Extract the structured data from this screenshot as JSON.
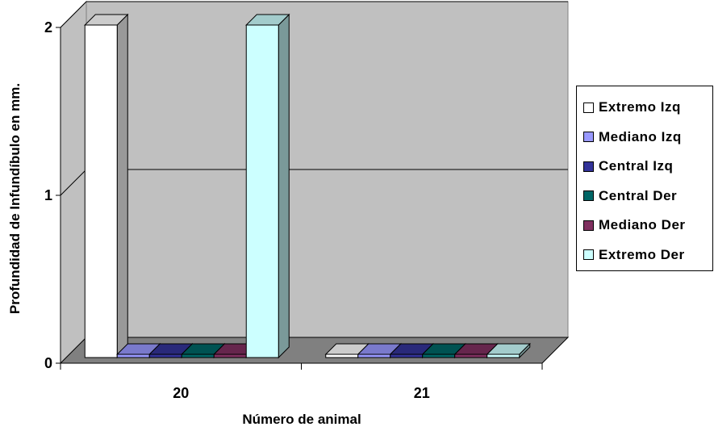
{
  "chart_data": {
    "type": "bar",
    "categories": [
      "20",
      "21"
    ],
    "series": [
      {
        "name": "Extremo Izq",
        "values": [
          2,
          0
        ]
      },
      {
        "name": "Mediano Izq",
        "values": [
          0,
          0
        ]
      },
      {
        "name": "Central Izq",
        "values": [
          0,
          0
        ]
      },
      {
        "name": "Central Der",
        "values": [
          0,
          0
        ]
      },
      {
        "name": "Mediano Der",
        "values": [
          0,
          0
        ]
      },
      {
        "name": "Extremo Der",
        "values": [
          2,
          0
        ]
      }
    ],
    "xlabel": "Número de animal",
    "ylabel": "Profundidad de Infundíbulo en mm.",
    "ylim": [
      0,
      2
    ],
    "yticks": [
      "0",
      "1",
      "2"
    ],
    "grid": true,
    "legend_position": "right",
    "colors": {
      "series": [
        "#ffffff",
        "#9999ff",
        "#333399",
        "#006666",
        "#803060",
        "#ccffff"
      ],
      "wall": "#c0c0c0",
      "floor": "#808080"
    }
  }
}
